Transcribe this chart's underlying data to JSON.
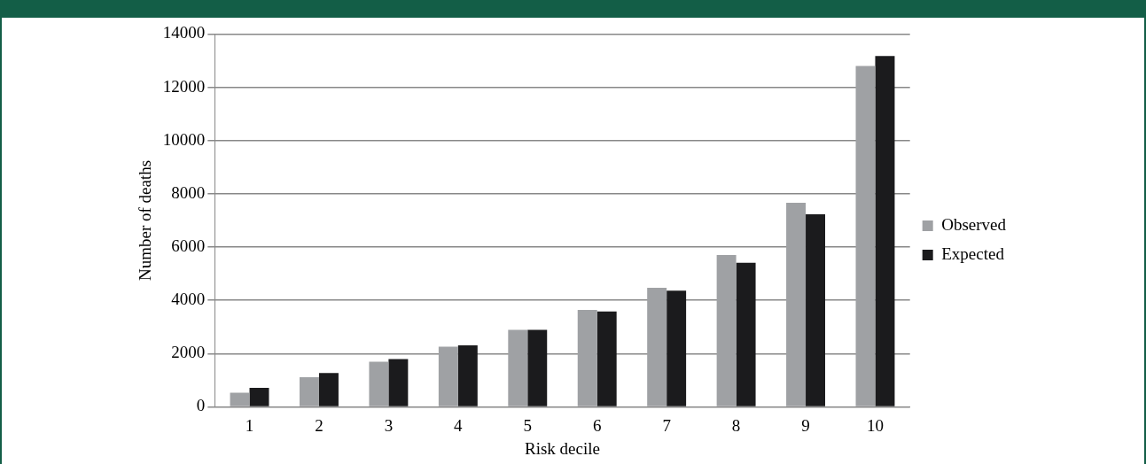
{
  "chart_data": {
    "type": "bar",
    "xlabel": "Risk decile",
    "ylabel": "Number of deaths",
    "categories": [
      "1",
      "2",
      "3",
      "4",
      "5",
      "6",
      "7",
      "8",
      "9",
      "10"
    ],
    "series": [
      {
        "name": "Observed",
        "color": "#9fa1a4",
        "values": [
          530,
          1110,
          1690,
          2260,
          2890,
          3640,
          4470,
          5700,
          7660,
          12800
        ]
      },
      {
        "name": "Expected",
        "color": "#1b1b1d",
        "values": [
          710,
          1270,
          1790,
          2310,
          2890,
          3580,
          4360,
          5410,
          7230,
          13170
        ]
      }
    ],
    "ylim": [
      0,
      14000
    ],
    "yticks": [
      0,
      2000,
      4000,
      6000,
      8000,
      10000,
      12000,
      14000
    ],
    "grid": "y",
    "legend": "right"
  }
}
